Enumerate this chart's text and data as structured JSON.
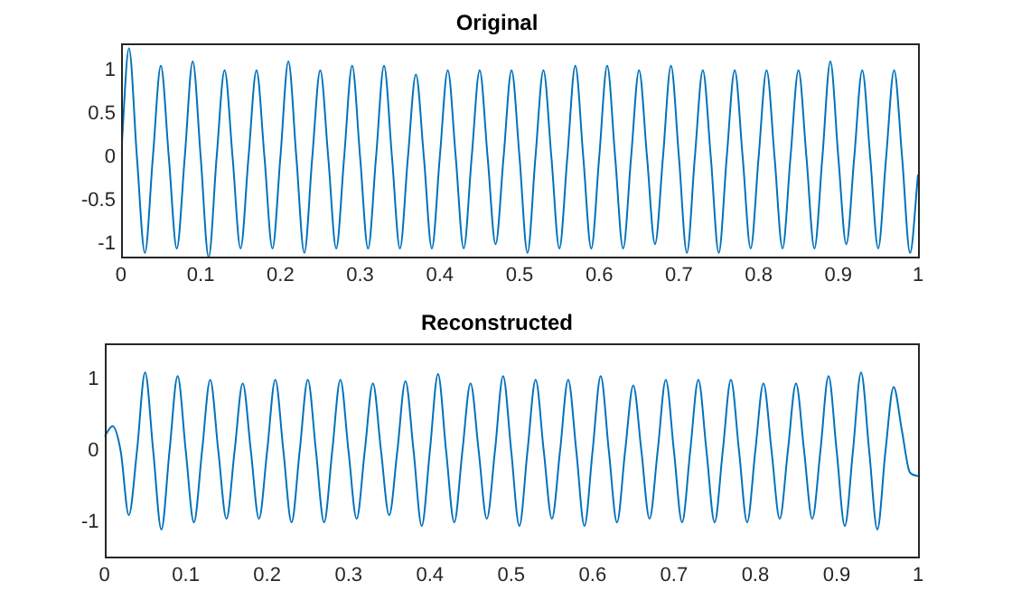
{
  "chart_data": [
    {
      "type": "line",
      "title": "Original",
      "x": [
        0,
        0.01,
        0.02,
        0.03,
        0.04,
        0.05,
        0.06,
        0.07,
        0.08,
        0.09,
        0.1,
        0.11,
        0.12,
        0.13,
        0.14,
        0.15,
        0.16,
        0.17,
        0.18,
        0.19,
        0.2,
        0.21,
        0.22,
        0.23,
        0.24,
        0.25,
        0.26,
        0.27,
        0.28,
        0.29,
        0.3,
        0.31,
        0.32,
        0.33,
        0.34,
        0.35,
        0.36,
        0.37,
        0.38,
        0.39,
        0.4,
        0.41,
        0.42,
        0.43,
        0.44,
        0.45,
        0.46,
        0.47,
        0.48,
        0.49,
        0.5,
        0.51,
        0.52,
        0.53,
        0.54,
        0.55,
        0.56,
        0.57,
        0.58,
        0.59,
        0.6,
        0.61,
        0.62,
        0.63,
        0.64,
        0.65,
        0.66,
        0.67,
        0.68,
        0.69,
        0.7,
        0.71,
        0.72,
        0.73,
        0.74,
        0.75,
        0.76,
        0.77,
        0.78,
        0.79,
        0.8,
        0.81,
        0.82,
        0.83,
        0.84,
        0.85,
        0.86,
        0.87,
        0.88,
        0.89,
        0.9,
        0.91,
        0.92,
        0.93,
        0.94,
        0.95,
        0.96,
        0.97,
        0.98,
        0.99,
        1
      ],
      "series": [
        {
          "color": "#0072bd",
          "values": [
            0,
            1.25,
            0,
            -1.1,
            0,
            1.05,
            0,
            -1.05,
            0,
            1.1,
            0,
            -1.15,
            0,
            1.0,
            0,
            -1.05,
            0,
            1.0,
            0,
            -1.05,
            0,
            1.1,
            0,
            -1.1,
            0,
            1.0,
            0,
            -1.05,
            0,
            1.05,
            0,
            -1.05,
            0,
            1.05,
            0,
            -1.05,
            0,
            0.95,
            0,
            -1.05,
            0,
            1.0,
            0,
            -1.05,
            0,
            1.0,
            0,
            -1.0,
            0,
            1.0,
            0,
            -1.1,
            0,
            1.0,
            0,
            -1.05,
            0,
            1.05,
            0,
            -1.05,
            0,
            1.05,
            0,
            -1.05,
            0,
            1.0,
            0,
            -1.0,
            0,
            1.05,
            0,
            -1.1,
            0,
            1.0,
            0,
            -1.1,
            0,
            1.0,
            0,
            -1.05,
            0,
            1.0,
            0,
            -1.05,
            0,
            1.0,
            0,
            -1.05,
            0,
            1.1,
            0,
            -1.0,
            0,
            1.0,
            0,
            -1.05,
            0,
            1.0,
            0,
            -1.1,
            -0.2
          ]
        }
      ],
      "xlim": [
        0,
        1
      ],
      "xticks": [
        0,
        0.1,
        0.2,
        0.3,
        0.4,
        0.5,
        0.6,
        0.7,
        0.8,
        0.9,
        1
      ],
      "ylim": [
        -1.16,
        1.3
      ],
      "yticks": [
        -1,
        -0.5,
        0,
        0.5,
        1
      ],
      "grid": false,
      "legend": false
    },
    {
      "type": "line",
      "title": "Reconstructed",
      "x": [
        0,
        0.01,
        0.02,
        0.03,
        0.04,
        0.05,
        0.06,
        0.07,
        0.08,
        0.09,
        0.1,
        0.11,
        0.12,
        0.13,
        0.14,
        0.15,
        0.16,
        0.17,
        0.18,
        0.19,
        0.2,
        0.21,
        0.22,
        0.23,
        0.24,
        0.25,
        0.26,
        0.27,
        0.28,
        0.29,
        0.3,
        0.31,
        0.32,
        0.33,
        0.34,
        0.35,
        0.36,
        0.37,
        0.38,
        0.39,
        0.4,
        0.41,
        0.42,
        0.43,
        0.44,
        0.45,
        0.46,
        0.47,
        0.48,
        0.49,
        0.5,
        0.51,
        0.52,
        0.53,
        0.54,
        0.55,
        0.56,
        0.57,
        0.58,
        0.59,
        0.6,
        0.61,
        0.62,
        0.63,
        0.64,
        0.65,
        0.66,
        0.67,
        0.68,
        0.69,
        0.7,
        0.71,
        0.72,
        0.73,
        0.74,
        0.75,
        0.76,
        0.77,
        0.78,
        0.79,
        0.8,
        0.81,
        0.82,
        0.83,
        0.84,
        0.85,
        0.86,
        0.87,
        0.88,
        0.89,
        0.9,
        0.91,
        0.92,
        0.93,
        0.94,
        0.95,
        0.96,
        0.97,
        0.98,
        0.99,
        1
      ],
      "series": [
        {
          "color": "#0072bd",
          "values": [
            0.2,
            0.35,
            0,
            -0.9,
            0,
            1.1,
            0,
            -1.1,
            0,
            1.05,
            0,
            -1.0,
            0,
            1.0,
            0,
            -0.95,
            0,
            0.95,
            0,
            -0.95,
            0,
            1.0,
            0,
            -1.0,
            0,
            1.0,
            0,
            -1.0,
            0,
            1.0,
            0,
            -0.95,
            0,
            0.95,
            0,
            -0.9,
            0,
            0.98,
            0,
            -1.05,
            0,
            1.08,
            0,
            -1.0,
            0,
            0.95,
            0,
            -0.95,
            0,
            1.05,
            0,
            -1.05,
            0,
            1.0,
            0,
            -0.95,
            0,
            1.0,
            0,
            -1.05,
            0,
            1.05,
            0,
            -1.0,
            0,
            0.92,
            0,
            -0.95,
            0,
            1.0,
            0,
            -1.0,
            0,
            1.0,
            0,
            -1.0,
            0,
            1.0,
            0,
            -1.0,
            0,
            0.95,
            0,
            -0.95,
            0,
            0.95,
            0,
            -0.95,
            0,
            1.05,
            0,
            -1.05,
            0,
            1.1,
            0,
            -1.1,
            0,
            0.9,
            0.3,
            -0.3,
            -0.35
          ]
        }
      ],
      "xlim": [
        0,
        1
      ],
      "xticks": [
        0,
        0.1,
        0.2,
        0.3,
        0.4,
        0.5,
        0.6,
        0.7,
        0.8,
        0.9,
        1
      ],
      "ylim": [
        -1.5,
        1.5
      ],
      "yticks": [
        -1,
        0,
        1
      ],
      "grid": false,
      "legend": false
    }
  ]
}
